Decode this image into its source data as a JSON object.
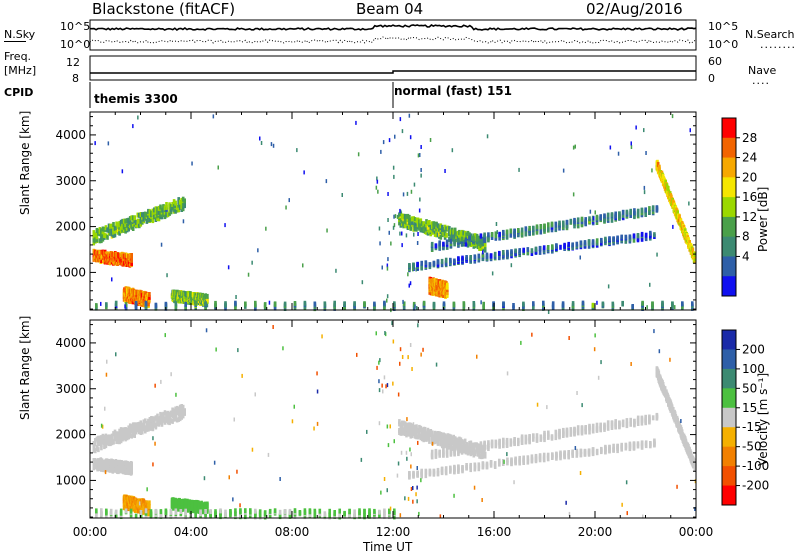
{
  "header": {
    "station": "Blackstone (fitACF)",
    "beam": "Beam 04",
    "date": "02/Aug/2016"
  },
  "status_panel": {
    "left_label_top": "N.Sky",
    "left_label_freq_1": "Freq.",
    "left_label_freq_2": "[MHz]",
    "left_label_cpid": "CPID",
    "noise_ticks_left": [
      "10^5",
      "10^0"
    ],
    "noise_ticks_right": [
      "10^5",
      "10^0"
    ],
    "freq_ticks_left": [
      "12",
      "8"
    ],
    "nave_ticks_right": [
      "60",
      "0"
    ],
    "right_label_top": "N.Search",
    "right_label_dots_1": "........",
    "right_label_nave": "Nave",
    "right_label_dots_2": "....",
    "cpid_segments": [
      {
        "label": "themis 3300",
        "start_hour": 0
      },
      {
        "label": "normal (fast) 151",
        "start_hour": 12
      }
    ]
  },
  "chart_data": [
    {
      "type": "heatmap",
      "name": "power-panel",
      "ylabel": "Slant Range [km]",
      "xlabel": "",
      "xlim": [
        0,
        24
      ],
      "ylim": [
        180,
        4500
      ],
      "yticks": [
        1000,
        2000,
        3000,
        4000
      ],
      "colorbar": {
        "label": "Power [dB]",
        "ticks": [
          "28",
          "24",
          "20",
          "16",
          "12",
          "8",
          "4"
        ],
        "colors": [
          "#ff0000",
          "#f26400",
          "#f6a800",
          "#f5e600",
          "#9bd800",
          "#4aa04a",
          "#3c8a72",
          "#2e5fa8",
          "#1010f0"
        ]
      },
      "features": [
        {
          "kind": "band",
          "start": [
            0.1,
            1750
          ],
          "end": [
            3.7,
            2500
          ],
          "width": 260,
          "value": 13
        },
        {
          "kind": "band",
          "start": [
            0.1,
            1350
          ],
          "end": [
            1.6,
            1250
          ],
          "width": 220,
          "value": 26
        },
        {
          "kind": "band",
          "start": [
            1.3,
            520
          ],
          "end": [
            2.3,
            380
          ],
          "width": 260,
          "value": 25
        },
        {
          "kind": "band",
          "start": [
            3.2,
            480
          ],
          "end": [
            4.6,
            380
          ],
          "width": 200,
          "value": 14
        },
        {
          "kind": "band",
          "start": [
            12.2,
            2150
          ],
          "end": [
            15.6,
            1600
          ],
          "width": 260,
          "value": 13
        },
        {
          "kind": "band",
          "start": [
            13.5,
            1550
          ],
          "end": [
            22.4,
            2350
          ],
          "width": 140,
          "value": 8
        },
        {
          "kind": "band",
          "start": [
            12.6,
            1100
          ],
          "end": [
            22.3,
            1800
          ],
          "width": 110,
          "value": 6
        },
        {
          "kind": "band",
          "start": [
            13.4,
            700
          ],
          "end": [
            14.1,
            600
          ],
          "width": 300,
          "value": 24
        },
        {
          "kind": "band",
          "start": [
            22.4,
            3350
          ],
          "end": [
            23.9,
            1300
          ],
          "width": 180,
          "value": 20
        },
        {
          "kind": "band",
          "start": [
            0.2,
            260
          ],
          "end": [
            23.8,
            260
          ],
          "width": 120,
          "value": 9
        }
      ]
    },
    {
      "type": "heatmap",
      "name": "velocity-panel",
      "ylabel": "Slant Range [km]",
      "xlabel": "Time UT",
      "xlim": [
        0,
        24
      ],
      "ylim": [
        180,
        4500
      ],
      "yticks": [
        1000,
        2000,
        3000,
        4000
      ],
      "xticks": [
        "00:00",
        "04:00",
        "08:00",
        "12:00",
        "16:00",
        "20:00",
        "00:00"
      ],
      "colorbar": {
        "label": "Velocity [m s⁻¹]",
        "ticks": [
          "200",
          "100",
          "50",
          "15",
          "-15",
          "-50",
          "-100",
          "-200"
        ],
        "colors": [
          "#1a2aa8",
          "#2e5fa8",
          "#3c8a72",
          "#4cc040",
          "#c8c8c8",
          "#f5b000",
          "#f28000",
          "#f25000",
          "#ff0000"
        ]
      },
      "features": [
        {
          "kind": "band",
          "start": [
            0.1,
            1750
          ],
          "end": [
            3.7,
            2500
          ],
          "width": 260,
          "value": 0
        },
        {
          "kind": "band",
          "start": [
            0.1,
            1350
          ],
          "end": [
            1.6,
            1250
          ],
          "width": 220,
          "value": 0
        },
        {
          "kind": "band",
          "start": [
            1.3,
            520
          ],
          "end": [
            2.3,
            380
          ],
          "width": 260,
          "value": -80
        },
        {
          "kind": "band",
          "start": [
            3.2,
            480
          ],
          "end": [
            4.6,
            380
          ],
          "width": 200,
          "value": 60
        },
        {
          "kind": "band",
          "start": [
            12.2,
            2150
          ],
          "end": [
            15.6,
            1600
          ],
          "width": 260,
          "value": 0
        },
        {
          "kind": "band",
          "start": [
            13.5,
            1550
          ],
          "end": [
            22.4,
            2350
          ],
          "width": 140,
          "value": 0
        },
        {
          "kind": "band",
          "start": [
            12.6,
            1100
          ],
          "end": [
            22.3,
            1800
          ],
          "width": 110,
          "value": 0
        },
        {
          "kind": "band",
          "start": [
            22.4,
            3350
          ],
          "end": [
            23.9,
            1300
          ],
          "width": 180,
          "value": 0
        },
        {
          "kind": "band",
          "start": [
            0.2,
            260
          ],
          "end": [
            12.0,
            260
          ],
          "width": 140,
          "value": 30
        }
      ]
    }
  ]
}
